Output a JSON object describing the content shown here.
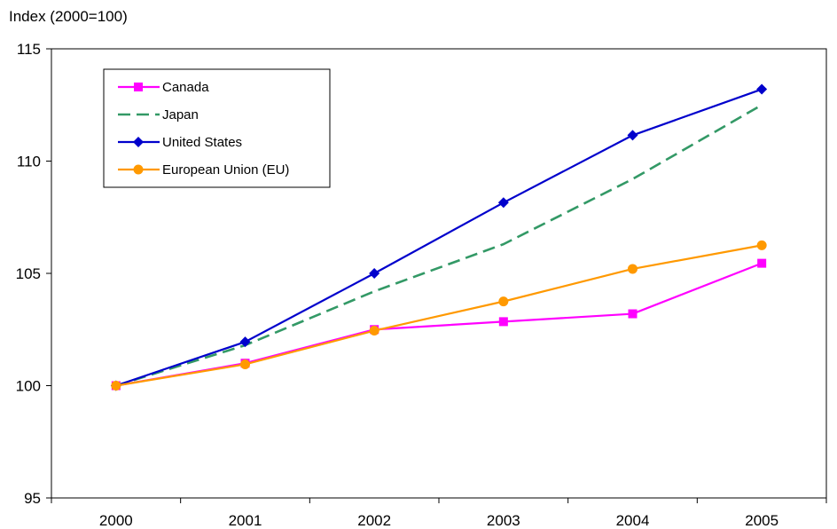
{
  "chart_data": {
    "type": "line",
    "title": "",
    "ylabel": "Index (2000=100)",
    "xlabel": "",
    "x": [
      "2000",
      "2001",
      "2002",
      "2003",
      "2004",
      "2005"
    ],
    "ylim": [
      95,
      115
    ],
    "yticks": [
      "95",
      "100",
      "105",
      "110",
      "115"
    ],
    "grid": false,
    "legend_position": "top-left",
    "series": [
      {
        "name": "Canada",
        "values": [
          100,
          101.0,
          102.5,
          102.85,
          103.2,
          105.45
        ],
        "color": "#ff00ff",
        "marker": "square",
        "dash": false
      },
      {
        "name": "Japan",
        "values": [
          100,
          101.8,
          104.2,
          106.3,
          109.2,
          112.5
        ],
        "color": "#339966",
        "marker": "none",
        "dash": true
      },
      {
        "name": "United States",
        "values": [
          100,
          101.95,
          105.0,
          108.15,
          111.15,
          113.2
        ],
        "color": "#0000cc",
        "marker": "diamond",
        "dash": false
      },
      {
        "name": "European Union (EU)",
        "values": [
          100,
          100.95,
          102.45,
          103.75,
          105.2,
          106.25
        ],
        "color": "#ff9900",
        "marker": "circle",
        "dash": false
      }
    ]
  }
}
